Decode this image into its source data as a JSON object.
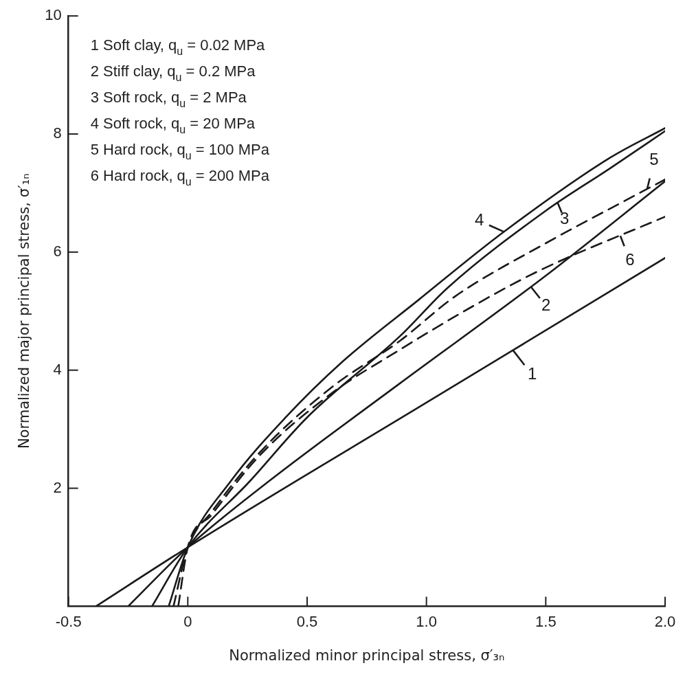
{
  "chart_data": {
    "type": "line",
    "xlabel": "Normalized minor principal stress, σ′₃ₙ",
    "ylabel": "Normalized major principal stress, σ′₁ₙ",
    "xlim": [
      -0.5,
      2.0
    ],
    "xticks": [
      -0.5,
      0,
      0.5,
      {
        "value": 1,
        "label": "1.0"
      },
      1.5,
      {
        "value": 2,
        "label": "2.0"
      }
    ],
    "ylim": [
      0,
      10
    ],
    "yticks": [
      2,
      4,
      6,
      8,
      10
    ],
    "grid": false,
    "legend": "right",
    "marker": "none",
    "series": [
      {
        "name": "1",
        "color": "#1a1a1a",
        "line_style": "solid",
        "x": [
          -0.385,
          0,
          1.0,
          2.0
        ],
        "values": [
          0,
          1,
          3.45,
          5.9
        ]
      },
      {
        "name": "2",
        "color": "#1a1a1a",
        "line_style": "solid",
        "x": [
          -0.25,
          0,
          0.34,
          0.89,
          1.5,
          2.0
        ],
        "values": [
          0,
          1,
          2.12,
          3.78,
          5.6,
          7.2
        ]
      },
      {
        "name": "3",
        "color": "#1a1a1a",
        "line_style": "solid",
        "x": [
          -0.15,
          0,
          0.26,
          0.5,
          0.89,
          1.09,
          1.5,
          1.77,
          2.0
        ],
        "values": [
          0,
          1,
          2.12,
          3.2,
          4.58,
          5.4,
          6.7,
          7.42,
          8.05
        ]
      },
      {
        "name": "4",
        "color": "#1a1a1a",
        "line_style": "solid",
        "x": [
          -0.08,
          0,
          0.18,
          0.41,
          0.65,
          0.97,
          1.32,
          1.77,
          2.0
        ],
        "values": [
          0,
          1,
          2.12,
          3.2,
          4.15,
          5.2,
          6.33,
          7.6,
          8.1
        ]
      },
      {
        "name": "5",
        "color": "#1a1a1a",
        "line_style": "dashed",
        "x": [
          -0.06,
          0,
          0.1,
          0.3,
          0.6,
          0.89,
          1.12,
          1.5,
          1.86,
          2.0
        ],
        "values": [
          0,
          1,
          1.6,
          2.6,
          3.7,
          4.5,
          5.25,
          6.15,
          6.93,
          7.23
        ]
      },
      {
        "name": "6",
        "color": "#1a1a1a",
        "line_style": "dashed",
        "x": [
          -0.04,
          0,
          0.1,
          0.3,
          0.6,
          0.89,
          1.18,
          1.47,
          2.0
        ],
        "values": [
          0,
          1,
          1.55,
          2.55,
          3.6,
          4.35,
          5.05,
          5.68,
          6.6
        ]
      }
    ],
    "annotations": [
      "1 Soft clay, q$_{u}$ = 0.02 MPa",
      "2 Stiff clay, q$_{u}$ = 0.2 MPa",
      "3 Soft rock, q$_{u}$ = 2 MPa",
      "4 Soft rock, q$_{u}$ = 20 MPa",
      "5 Hard rock, q$_{u}$ = 100 MPa",
      "6 Hard rock, q$_{u}$ = 200 MPa"
    ]
  }
}
